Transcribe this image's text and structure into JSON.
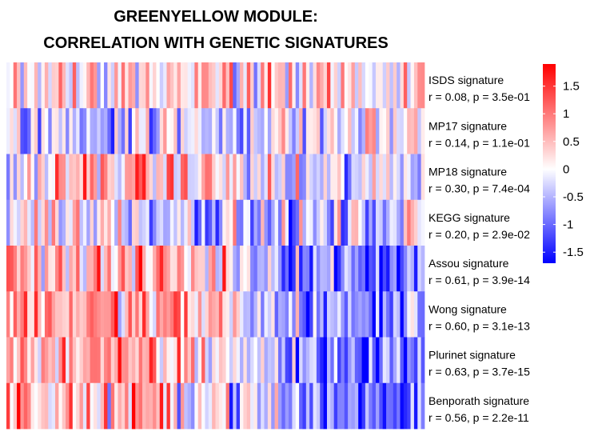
{
  "chart_data": {
    "type": "heatmap",
    "title_lines": [
      "GREENYELLOW MODULE:",
      "CORRELATION WITH GENETIC SIGNATURES"
    ],
    "rows": [
      {
        "name": "ISDS signature",
        "stat": "r = 0.08, p = 3.5e-01"
      },
      {
        "name": "MP17 signature",
        "stat": "r = 0.14, p = 1.1e-01"
      },
      {
        "name": "MP18 signature",
        "stat": "r = 0.30, p = 7.4e-04"
      },
      {
        "name": "KEGG signature",
        "stat": "r = 0.20, p = 2.9e-02"
      },
      {
        "name": "Assou signature",
        "stat": "r = 0.61, p = 3.9e-14"
      },
      {
        "name": "Wong signature",
        "stat": "r = 0.60, p = 3.1e-13"
      },
      {
        "name": "Plurinet signature",
        "stat": "r = 0.63, p = 3.7e-15"
      },
      {
        "name": "Benporath signature",
        "stat": "r = 0.56, p = 2.2e-11"
      }
    ],
    "n_columns": 120,
    "row_profiles": [
      [
        0.25,
        0.35,
        0.3,
        0.3,
        0.2,
        0.25,
        0.2,
        0.25,
        0.2,
        0.15,
        0.15
      ],
      [
        -0.35,
        -0.3,
        -0.25,
        -0.25,
        -0.25,
        -0.2,
        -0.15,
        -0.15,
        -0.05,
        0.0,
        0.05
      ],
      [
        -0.1,
        0.3,
        0.5,
        0.55,
        0.45,
        0.3,
        -0.1,
        -0.3,
        -0.4,
        -0.2,
        -0.1
      ],
      [
        0.1,
        0.2,
        0.1,
        0.0,
        -0.2,
        -0.3,
        -0.5,
        -0.5,
        -0.5,
        -0.3,
        0.1
      ],
      [
        0.7,
        0.7,
        0.6,
        0.5,
        0.6,
        0.3,
        -0.2,
        -0.6,
        -0.8,
        -1.0,
        -0.7
      ],
      [
        0.9,
        0.8,
        0.6,
        0.6,
        0.6,
        0.4,
        -0.3,
        -0.6,
        -0.8,
        -0.9,
        -0.7
      ],
      [
        0.8,
        0.7,
        0.4,
        0.6,
        0.5,
        0.3,
        -0.3,
        -0.7,
        -0.9,
        -0.9,
        -0.7
      ],
      [
        0.6,
        0.5,
        0.4,
        0.5,
        0.4,
        0.1,
        -0.3,
        -0.7,
        -0.9,
        -1.0,
        -0.8
      ]
    ],
    "color_scale": {
      "min": -1.7,
      "max": 1.9,
      "low_color": "#0000ff",
      "mid_color": "#ffffff",
      "high_color": "#ff0000",
      "ticks": [
        1.5,
        1,
        0.5,
        0,
        -0.5,
        -1,
        -1.5
      ],
      "tick_labels": [
        "1.5",
        "1",
        "0.5",
        "0",
        "-0.5",
        "-1",
        "-1.5"
      ]
    }
  }
}
